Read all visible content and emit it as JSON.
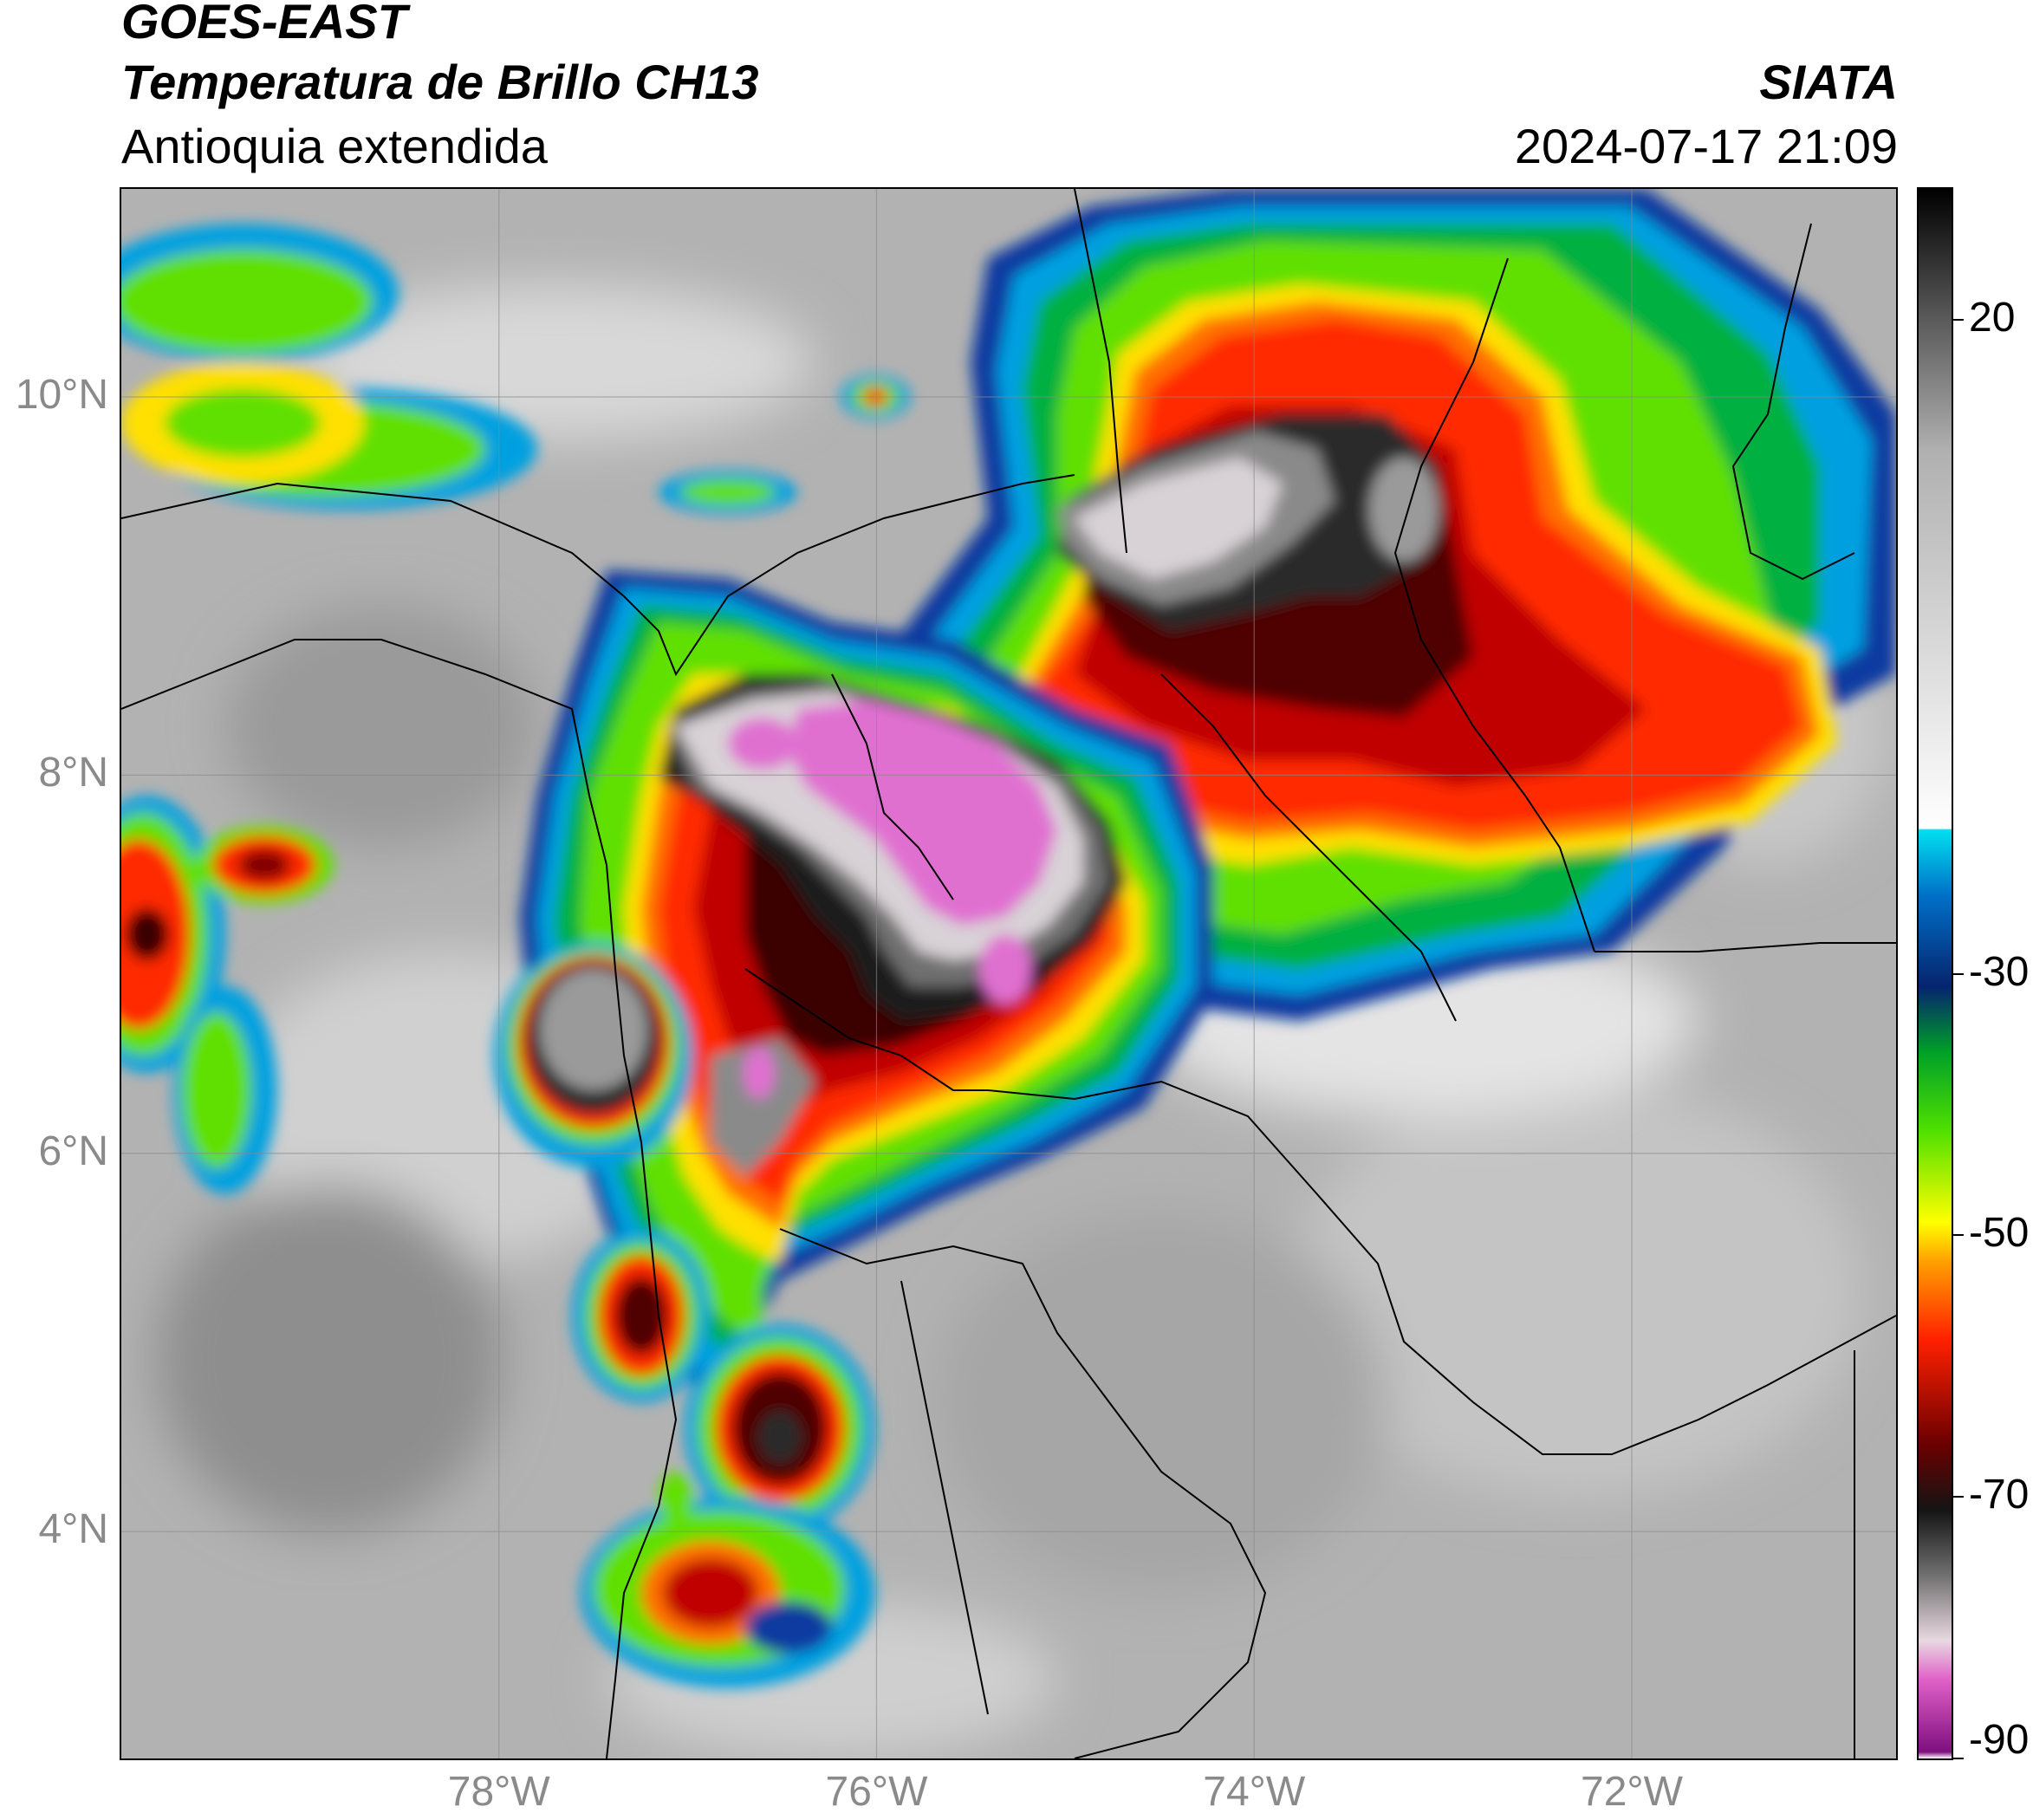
{
  "header": {
    "satellite": "GOES-EAST",
    "product": "Temperatura de Brillo CH13",
    "region": "Antioquia extendida",
    "agency": "SIATA",
    "datetime": "2024-07-17 21:09"
  },
  "map": {
    "lat_range": [
      2.8,
      11.1
    ],
    "lon_range": [
      -80.0,
      -70.6
    ],
    "lat_ticks": [
      {
        "value": 10,
        "label": "10°N"
      },
      {
        "value": 8,
        "label": "8°N"
      },
      {
        "value": 6,
        "label": "6°N"
      },
      {
        "value": 4,
        "label": "4°N"
      }
    ],
    "lon_ticks": [
      {
        "value": -78,
        "label": "78°W"
      },
      {
        "value": -76,
        "label": "76°W"
      },
      {
        "value": -74,
        "label": "74°W"
      },
      {
        "value": -72,
        "label": "72°W"
      }
    ],
    "gridlines": true,
    "background_color": "#b4b4b4",
    "boundary_color": "#000000"
  },
  "colorbar": {
    "min": -90,
    "max": 30,
    "tick_labels": [
      {
        "value": 20,
        "label": "20"
      },
      {
        "value": -30,
        "label": "-30"
      },
      {
        "value": -50,
        "label": "-50"
      },
      {
        "value": -70,
        "label": "-70"
      },
      {
        "value": -90,
        "label": "-90"
      }
    ],
    "stops": [
      {
        "value": -90,
        "color": "#ffffff"
      },
      {
        "value": -89.5,
        "color": "#7e0f7e"
      },
      {
        "value": -84,
        "color": "#e060c8"
      },
      {
        "value": -81,
        "color": "#e8d8e0"
      },
      {
        "value": -76,
        "color": "#707070"
      },
      {
        "value": -71,
        "color": "#141414"
      },
      {
        "value": -66,
        "color": "#6a0000"
      },
      {
        "value": -58,
        "color": "#ff2000"
      },
      {
        "value": -52,
        "color": "#ffa000"
      },
      {
        "value": -49,
        "color": "#ffff00"
      },
      {
        "value": -42,
        "color": "#50e000"
      },
      {
        "value": -36,
        "color": "#00a028"
      },
      {
        "value": -31,
        "color": "#06246e"
      },
      {
        "value": -24,
        "color": "#0070c8"
      },
      {
        "value": -19,
        "color": "#00e0f0"
      },
      {
        "value": -18.9,
        "color": "#ffffff"
      },
      {
        "value": 10,
        "color": "#b0b0b0"
      },
      {
        "value": 20,
        "color": "#5a5a5a"
      },
      {
        "value": 30,
        "color": "#000000"
      }
    ]
  }
}
